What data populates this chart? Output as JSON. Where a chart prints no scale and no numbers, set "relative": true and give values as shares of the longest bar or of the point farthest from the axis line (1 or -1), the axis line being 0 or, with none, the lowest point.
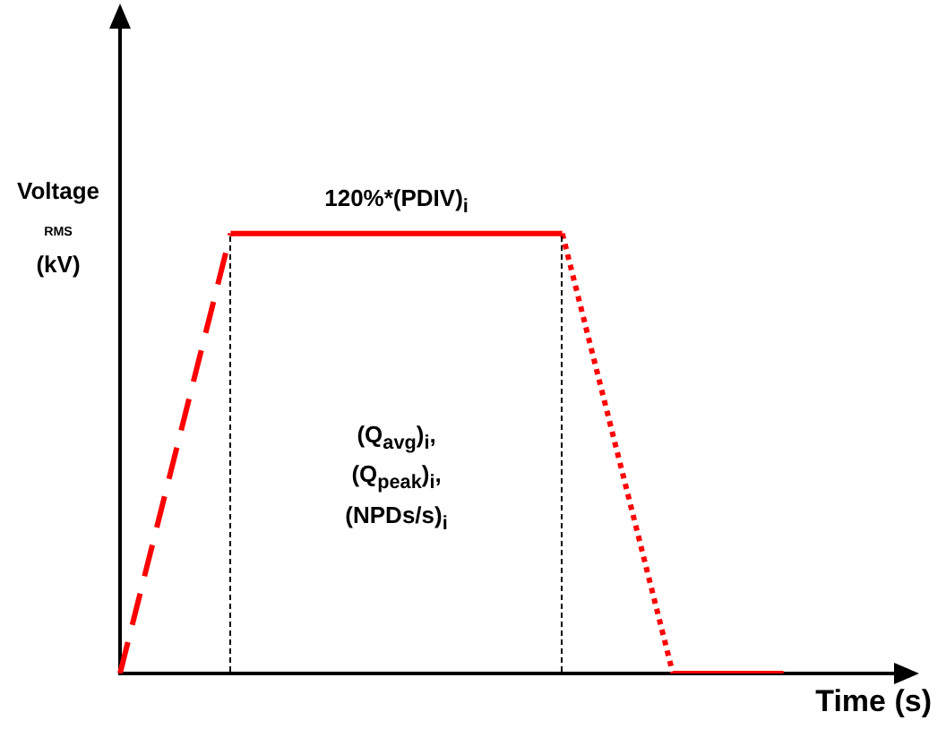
{
  "chart_data": {
    "type": "line",
    "relative": true,
    "xlabel": "Time (s)",
    "ylabel": "Voltage $_{RMS}$\n(kV)",
    "categories": [
      null,
      null,
      null,
      null,
      null,
      null,
      null,
      null
    ],
    "series": [
      {
        "color": "#ff0000",
        "line_style": "dashed",
        "values": [
          0,
          1,
          null,
          null,
          null,
          null,
          null,
          null
        ]
      },
      {
        "color": "#ff0000",
        "line_style": "solid",
        "values": [
          null,
          1,
          1,
          1,
          1,
          null,
          null,
          null
        ]
      },
      {
        "color": "#ff0000",
        "line_style": "dotted",
        "values": [
          null,
          null,
          null,
          null,
          1,
          0,
          null,
          null
        ]
      },
      {
        "color": "#ff0000",
        "line_style": "solid",
        "values": [
          null,
          null,
          null,
          null,
          null,
          0,
          0,
          null
        ]
      }
    ],
    "annotations": [
      "120%*(PDIV)$_{i}$",
      "(Q$_{avg}$)$_{i}$,\n(Q$_{peak}$)$_{i}$,\n(NPDs/s)$_{i}$"
    ],
    "legend": false,
    "grid": false,
    "marker": "none"
  }
}
